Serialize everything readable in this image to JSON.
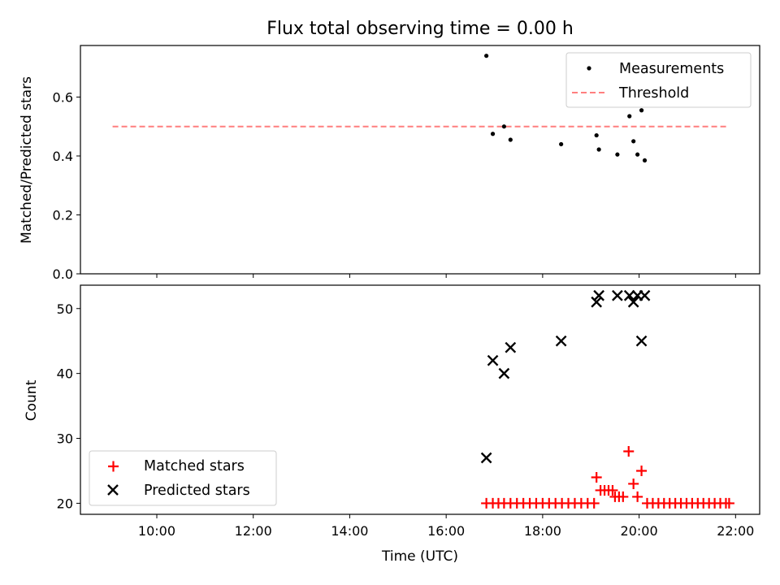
{
  "title": "Flux total observing time = 0.00 h",
  "chart_data": [
    {
      "type": "scatter",
      "ylabel": "Matched/Predicted stars",
      "xlim": [
        "08:25",
        "22:30"
      ],
      "ylim": [
        0,
        0.775
      ],
      "yticks": [
        0.0,
        0.2,
        0.4,
        0.6
      ],
      "ytick_labels": [
        "0.0",
        "0.2",
        "0.4",
        "0.6"
      ],
      "legend_placement": "top-right",
      "color": "#000000",
      "threshold": {
        "name": "Threshold",
        "value": 0.5,
        "from": "09:05",
        "to": "21:50",
        "color": "#ff7f7f"
      },
      "series": [
        {
          "name": "Measurements",
          "marker": "dot",
          "points": [
            [
              "16:50",
              0.74
            ],
            [
              "16:58",
              0.475
            ],
            [
              "17:12",
              0.5
            ],
            [
              "17:20",
              0.455
            ],
            [
              "18:23",
              0.44
            ],
            [
              "19:07",
              0.47
            ],
            [
              "19:10",
              0.422
            ],
            [
              "19:33",
              0.405
            ],
            [
              "19:48",
              0.535
            ],
            [
              "19:53",
              0.45
            ],
            [
              "19:58",
              0.405
            ],
            [
              "20:03",
              0.555
            ],
            [
              "20:07",
              0.385
            ]
          ]
        }
      ]
    },
    {
      "type": "scatter",
      "xlabel": "Time (UTC)",
      "ylabel": "Count",
      "xlim": [
        "08:25",
        "22:30"
      ],
      "ylim": [
        18.3,
        53.6
      ],
      "yticks": [
        20,
        30,
        40,
        50
      ],
      "ytick_labels": [
        "20",
        "30",
        "40",
        "50"
      ],
      "xticks": [
        "10:00",
        "12:00",
        "14:00",
        "16:00",
        "18:00",
        "20:00",
        "22:00"
      ],
      "legend_placement": "bottom-left",
      "series": [
        {
          "name": "Matched stars",
          "marker": "plus",
          "color": "#ff0000",
          "points": [
            [
              "16:50",
              20
            ],
            [
              "16:58",
              20
            ],
            [
              "17:05",
              20
            ],
            [
              "17:12",
              20
            ],
            [
              "17:20",
              20
            ],
            [
              "17:28",
              20
            ],
            [
              "17:36",
              20
            ],
            [
              "17:44",
              20
            ],
            [
              "17:52",
              20
            ],
            [
              "18:00",
              20
            ],
            [
              "18:08",
              20
            ],
            [
              "18:16",
              20
            ],
            [
              "18:24",
              20
            ],
            [
              "18:32",
              20
            ],
            [
              "18:40",
              20
            ],
            [
              "18:48",
              20
            ],
            [
              "18:56",
              20
            ],
            [
              "19:04",
              20
            ],
            [
              "19:07",
              24
            ],
            [
              "19:12",
              22
            ],
            [
              "19:17",
              22
            ],
            [
              "19:22",
              22
            ],
            [
              "19:27",
              22
            ],
            [
              "19:30",
              21
            ],
            [
              "19:35",
              21
            ],
            [
              "19:40",
              21
            ],
            [
              "19:47",
              28
            ],
            [
              "19:53",
              23
            ],
            [
              "19:58",
              21
            ],
            [
              "20:03",
              25
            ],
            [
              "20:10",
              20
            ],
            [
              "20:17",
              20
            ],
            [
              "20:24",
              20
            ],
            [
              "20:31",
              20
            ],
            [
              "20:38",
              20
            ],
            [
              "20:45",
              20
            ],
            [
              "20:52",
              20
            ],
            [
              "20:59",
              20
            ],
            [
              "21:06",
              20
            ],
            [
              "21:13",
              20
            ],
            [
              "21:20",
              20
            ],
            [
              "21:27",
              20
            ],
            [
              "21:34",
              20
            ],
            [
              "21:41",
              20
            ],
            [
              "21:48",
              20
            ],
            [
              "21:52",
              20
            ]
          ]
        },
        {
          "name": "Predicted stars",
          "marker": "x",
          "color": "#000000",
          "points": [
            [
              "16:50",
              27
            ],
            [
              "16:58",
              42
            ],
            [
              "17:12",
              40
            ],
            [
              "17:20",
              44
            ],
            [
              "18:23",
              45
            ],
            [
              "19:07",
              51
            ],
            [
              "19:10",
              52
            ],
            [
              "19:33",
              52
            ],
            [
              "19:48",
              52
            ],
            [
              "19:53",
              51
            ],
            [
              "19:58",
              52
            ],
            [
              "20:03",
              45
            ],
            [
              "20:07",
              52
            ]
          ]
        }
      ]
    }
  ]
}
